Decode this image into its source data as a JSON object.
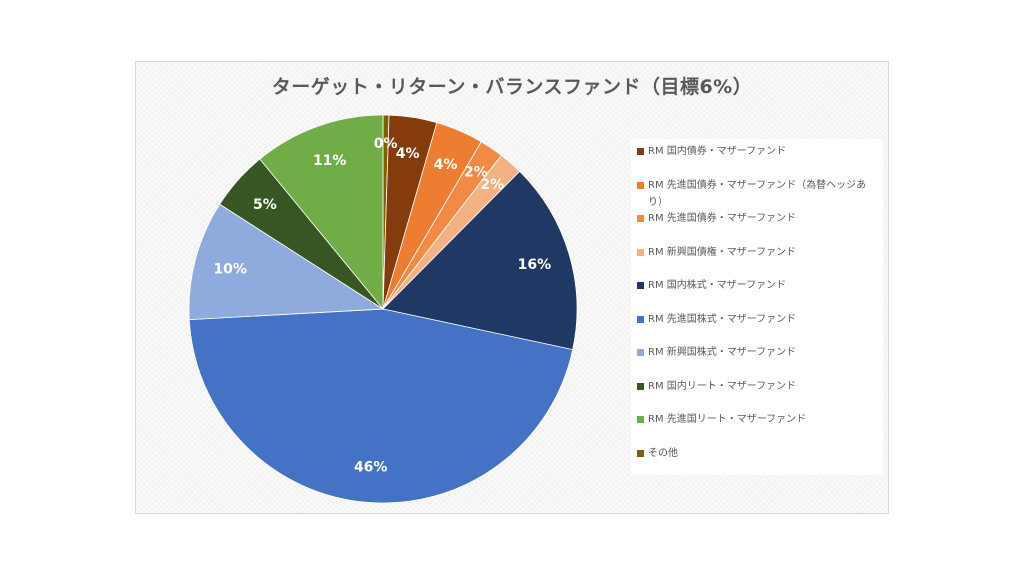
{
  "chart_data": {
    "type": "pie",
    "title": "ターゲット・リターン・バランスファンド（目標6%）",
    "slices": [
      {
        "name": "その他",
        "value": 0.5,
        "label": "0%",
        "color": "#7f6000"
      },
      {
        "name": "RM 国内債券・マザーファンド",
        "value": 4,
        "label": "4%",
        "color": "#843c0c"
      },
      {
        "name": "RM 先進国債券・マザーファンド（為替ヘッジあり）",
        "value": 4,
        "label": "4%",
        "color": "#ed7d31"
      },
      {
        "name": "RM 先進国債券・マザーファンド",
        "value": 2,
        "label": "2%",
        "color": "#f08a45"
      },
      {
        "name": "RM 新興国債権・マザーファンド",
        "value": 2,
        "label": "2%",
        "color": "#f4b183"
      },
      {
        "name": "RM 国内株式・マザーファンド",
        "value": 16,
        "label": "16%",
        "color": "#203864"
      },
      {
        "name": "RM 先進国株式・マザーファンド",
        "value": 46,
        "label": "46%",
        "color": "#4472c4"
      },
      {
        "name": "RM 新興国株式・マザーファンド",
        "value": 10,
        "label": "10%",
        "color": "#8faadc"
      },
      {
        "name": "RM 国内リート・マザーファンド",
        "value": 5,
        "label": "5%",
        "color": "#375623"
      },
      {
        "name": "RM 先進国リート・マザーファンド",
        "value": 11,
        "label": "11%",
        "color": "#70ad47"
      }
    ],
    "legend": {
      "position": "right",
      "entries": [
        {
          "name": "RM 国内債券・マザーファンド",
          "color": "#843c0c"
        },
        {
          "name": "RM 先進国債券・マザーファンド（為替ヘッジあり）",
          "color": "#ed7d31"
        },
        {
          "name": "RM 先進国債券・マザーファンド",
          "color": "#f08a45"
        },
        {
          "name": "RM 新興国債権・マザーファンド",
          "color": "#f4b183"
        },
        {
          "name": "RM 国内株式・マザーファンド",
          "color": "#203864"
        },
        {
          "name": "RM 先進国株式・マザーファンド",
          "color": "#4472c4"
        },
        {
          "name": "RM 新興国株式・マザーファンド",
          "color": "#8faadc"
        },
        {
          "name": "RM 国内リート・マザーファンド",
          "color": "#375623"
        },
        {
          "name": "RM 先進国リート・マザーファンド",
          "color": "#70ad47"
        },
        {
          "name": "その他",
          "color": "#7f6000"
        }
      ]
    }
  }
}
